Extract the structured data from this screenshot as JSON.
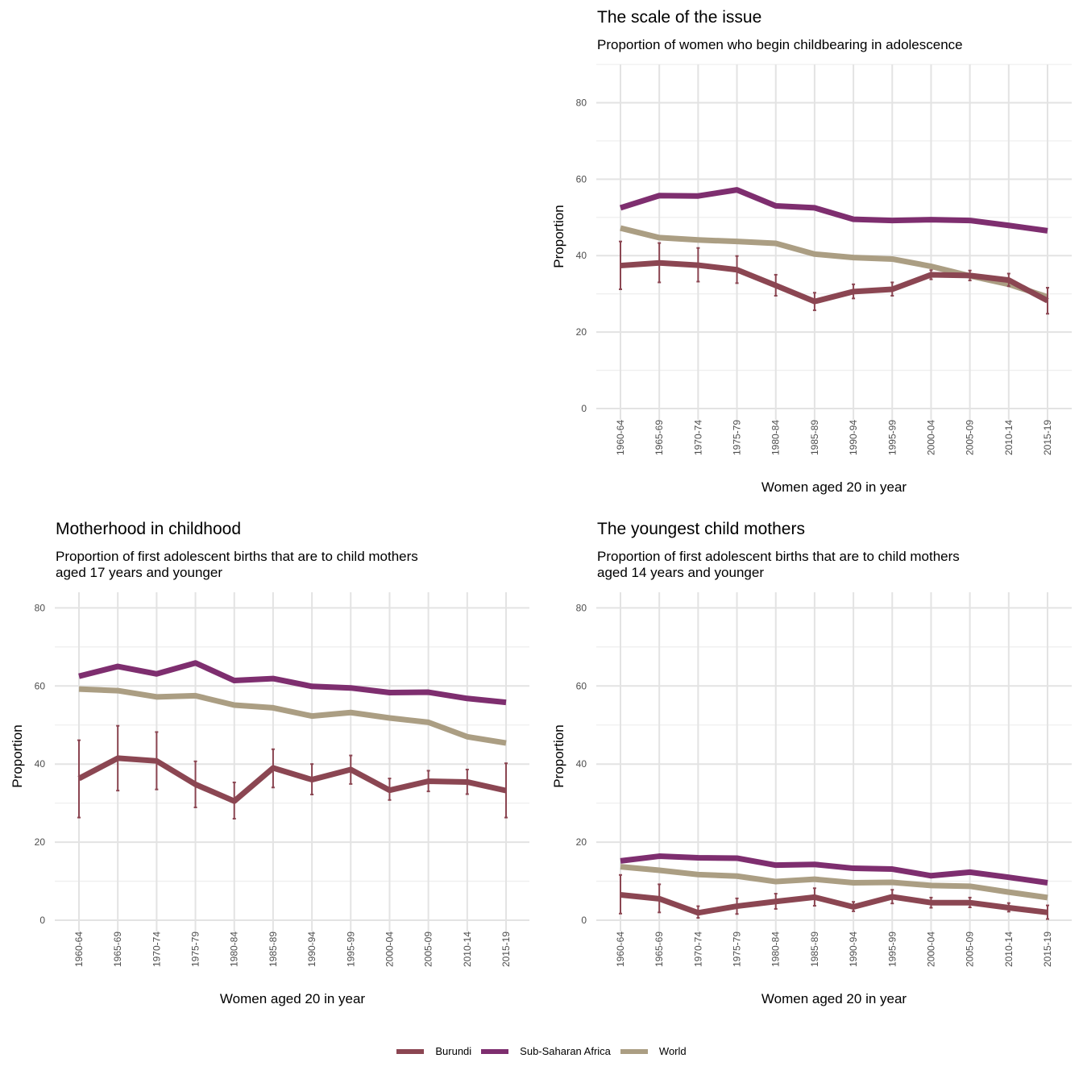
{
  "legend": [
    {
      "label": "Burundi",
      "color": "#8b4652"
    },
    {
      "label": "Sub-Saharan Africa",
      "color": "#7e2e6f"
    },
    {
      "label": "World",
      "color": "#ab9e83"
    }
  ],
  "chart_data": [
    {
      "type": "line",
      "title": "The scale of the issue",
      "subtitle": "Proportion of women who begin childbearing in adolescence",
      "xlabel": "Women aged 20 in year",
      "ylabel": "Proportion",
      "ylim": [
        0,
        90
      ],
      "yticks": [
        0,
        20,
        40,
        60,
        80
      ],
      "grid": true,
      "categories": [
        "1960-64",
        "1965-69",
        "1970-74",
        "1975-79",
        "1980-84",
        "1985-89",
        "1990-94",
        "1995-99",
        "2000-04",
        "2005-09",
        "2010-14",
        "2015-19"
      ],
      "series": [
        {
          "name": "Sub-Saharan Africa",
          "color": "#7e2e6f",
          "values": [
            52.5,
            55.7,
            55.6,
            57.2,
            53.0,
            52.5,
            49.5,
            49.2,
            49.4,
            49.2,
            47.9,
            46.5
          ]
        },
        {
          "name": "World",
          "color": "#ab9e83",
          "values": [
            47.2,
            44.7,
            44.1,
            43.7,
            43.2,
            40.4,
            39.5,
            39.1,
            37.2,
            34.7,
            32.5,
            29.2
          ]
        },
        {
          "name": "Burundi",
          "color": "#8b4652",
          "values": [
            37.4,
            38.1,
            37.5,
            36.3,
            32.2,
            28.0,
            30.6,
            31.2,
            35.0,
            34.8,
            33.6,
            28.2
          ],
          "error_low": [
            31.2,
            33.0,
            33.2,
            32.8,
            29.5,
            25.7,
            28.8,
            29.5,
            33.8,
            33.5,
            32.0,
            24.8
          ],
          "error_high": [
            43.7,
            43.3,
            42.0,
            39.9,
            35.0,
            30.3,
            32.5,
            33.0,
            36.2,
            36.1,
            35.3,
            31.6
          ]
        }
      ]
    },
    {
      "type": "line",
      "title": "Motherhood in childhood",
      "subtitle": "Proportion of first adolescent births that are to child mothers\naged 17 years and younger",
      "xlabel": "Women aged 20 in year",
      "ylabel": "Proportion",
      "ylim": [
        0,
        84
      ],
      "yticks": [
        0,
        20,
        40,
        60,
        80
      ],
      "grid": true,
      "categories": [
        "1960-64",
        "1965-69",
        "1970-74",
        "1975-79",
        "1980-84",
        "1985-89",
        "1990-94",
        "1995-99",
        "2000-04",
        "2005-09",
        "2010-14",
        "2015-19"
      ],
      "series": [
        {
          "name": "Sub-Saharan Africa",
          "color": "#7e2e6f",
          "values": [
            62.5,
            65.0,
            63.1,
            65.9,
            61.4,
            61.9,
            59.9,
            59.5,
            58.3,
            58.4,
            56.8,
            55.8
          ]
        },
        {
          "name": "World",
          "color": "#ab9e83",
          "values": [
            59.2,
            58.8,
            57.2,
            57.5,
            55.1,
            54.4,
            52.3,
            53.2,
            51.8,
            50.7,
            47.0,
            45.4
          ]
        },
        {
          "name": "Burundi",
          "color": "#8b4652",
          "values": [
            36.3,
            41.5,
            40.8,
            34.8,
            30.5,
            39.0,
            36.0,
            38.6,
            33.3,
            35.6,
            35.4,
            33.2
          ],
          "error_low": [
            26.3,
            33.2,
            33.5,
            28.9,
            26.0,
            34.0,
            32.2,
            34.9,
            30.8,
            33.0,
            32.3,
            26.3
          ],
          "error_high": [
            46.1,
            49.8,
            48.2,
            40.7,
            35.3,
            43.8,
            40.0,
            42.2,
            36.3,
            38.3,
            38.6,
            40.2
          ]
        }
      ]
    },
    {
      "type": "line",
      "title": "The youngest child mothers",
      "subtitle": "Proportion of first adolescent births that are to child mothers\naged 14 years and younger",
      "xlabel": "Women aged 20 in year",
      "ylabel": "Proportion",
      "ylim": [
        0,
        84
      ],
      "yticks": [
        0,
        20,
        40,
        60,
        80
      ],
      "grid": true,
      "categories": [
        "1960-64",
        "1965-69",
        "1970-74",
        "1975-79",
        "1980-84",
        "1985-89",
        "1990-94",
        "1995-99",
        "2000-04",
        "2005-09",
        "2010-14",
        "2015-19"
      ],
      "series": [
        {
          "name": "Sub-Saharan Africa",
          "color": "#7e2e6f",
          "values": [
            15.2,
            16.4,
            16.0,
            15.9,
            14.1,
            14.3,
            13.3,
            13.1,
            11.4,
            12.3,
            11.0,
            9.6
          ]
        },
        {
          "name": "World",
          "color": "#ab9e83",
          "values": [
            13.7,
            12.8,
            11.7,
            11.3,
            9.9,
            10.5,
            9.6,
            9.7,
            8.9,
            8.7,
            7.2,
            5.8
          ]
        },
        {
          "name": "Burundi",
          "color": "#8b4652",
          "values": [
            6.5,
            5.5,
            1.9,
            3.6,
            4.8,
            5.9,
            3.4,
            6.0,
            4.5,
            4.5,
            3.2,
            2.0
          ],
          "error_low": [
            1.7,
            2.0,
            0.6,
            1.6,
            2.9,
            3.7,
            2.3,
            4.3,
            3.2,
            3.3,
            2.2,
            0.3
          ],
          "error_high": [
            11.6,
            9.2,
            3.6,
            5.6,
            6.8,
            8.2,
            4.7,
            7.8,
            5.8,
            5.8,
            4.4,
            3.8
          ]
        }
      ]
    }
  ]
}
